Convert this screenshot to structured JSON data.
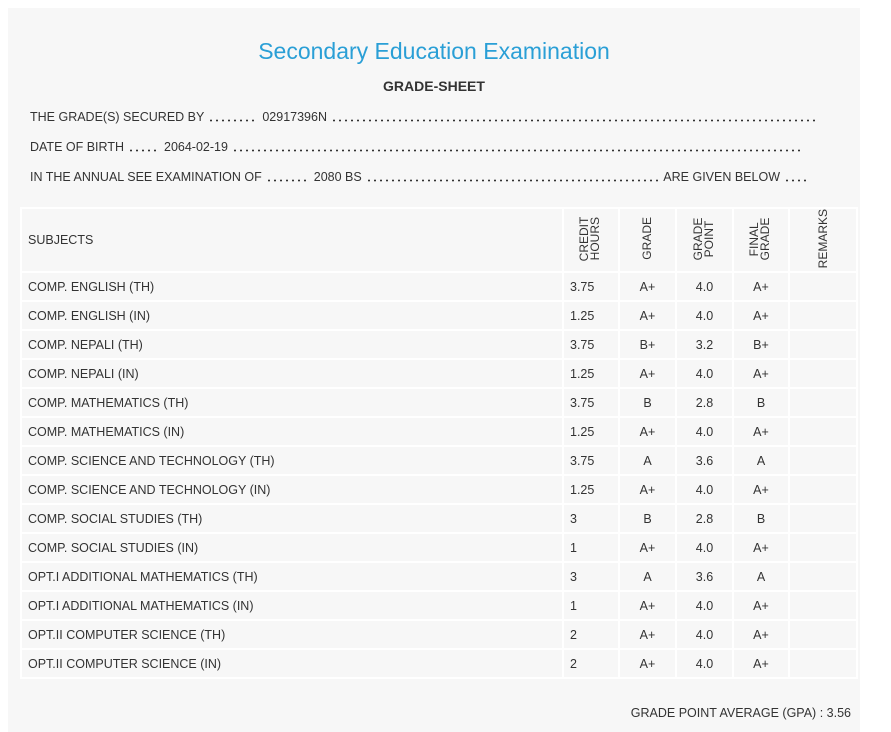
{
  "header": {
    "title": "Secondary Education Examination",
    "subtitle": "GRADE-SHEET"
  },
  "info": {
    "secured_by_label": "THE GRADE(S) SECURED BY",
    "secured_by": "02917396N",
    "dob_label": "DATE OF BIRTH",
    "dob": "2064-02-19",
    "exam_label": "IN THE ANNUAL SEE EXAMINATION OF",
    "exam": "2080 BS",
    "exam_suffix": "ARE GIVEN BELOW"
  },
  "table": {
    "columns": [
      "SUBJECTS",
      "CREDIT HOURS",
      "GRADE",
      "GRADE POINT",
      "FINAL GRADE",
      "REMARKS"
    ],
    "rows": [
      [
        "COMP. ENGLISH (TH)",
        "3.75",
        "A+",
        "4.0",
        "A+"
      ],
      [
        "COMP. ENGLISH (IN)",
        "1.25",
        "A+",
        "4.0",
        "A+"
      ],
      [
        "COMP. NEPALI (TH)",
        "3.75",
        "B+",
        "3.2",
        "B+"
      ],
      [
        "COMP. NEPALI (IN)",
        "1.25",
        "A+",
        "4.0",
        "A+"
      ],
      [
        "COMP. MATHEMATICS (TH)",
        "3.75",
        "B",
        "2.8",
        "B"
      ],
      [
        "COMP. MATHEMATICS (IN)",
        "1.25",
        "A+",
        "4.0",
        "A+"
      ],
      [
        "COMP. SCIENCE AND TECHNOLOGY (TH)",
        "3.75",
        "A",
        "3.6",
        "A"
      ],
      [
        "COMP. SCIENCE AND TECHNOLOGY (IN)",
        "1.25",
        "A+",
        "4.0",
        "A+"
      ],
      [
        "COMP. SOCIAL STUDIES (TH)",
        "3",
        "B",
        "2.8",
        "B"
      ],
      [
        "COMP. SOCIAL STUDIES (IN)",
        "1",
        "A+",
        "4.0",
        "A+"
      ],
      [
        "OPT.I ADDITIONAL MATHEMATICS (TH)",
        "3",
        "A",
        "3.6",
        "A"
      ],
      [
        "OPT.I ADDITIONAL MATHEMATICS (IN)",
        "1",
        "A+",
        "4.0",
        "A+"
      ],
      [
        "OPT.II COMPUTER SCIENCE (TH)",
        "2",
        "A+",
        "4.0",
        "A+"
      ],
      [
        "OPT.II COMPUTER SCIENCE (IN)",
        "2",
        "A+",
        "4.0",
        "A+"
      ]
    ]
  },
  "footer": {
    "gpa_label": "GRADE POINT AVERAGE (GPA) :",
    "gpa": "3.56"
  }
}
